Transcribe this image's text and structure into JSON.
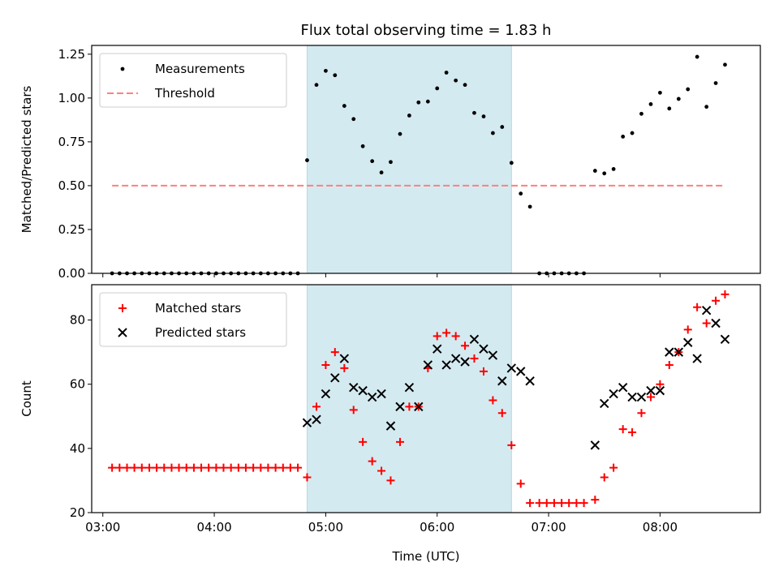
{
  "chart_data": {
    "type": "scatter",
    "title": "Flux total observing time = 1.83 h",
    "xlabel": "Time (UTC)",
    "x_tick_labels": [
      "03:00",
      "04:00",
      "05:00",
      "06:00",
      "07:00",
      "08:00"
    ],
    "x_ticks_hours": [
      3,
      4,
      5,
      6,
      7,
      8
    ],
    "xlim_hours": [
      2.9,
      8.9
    ],
    "shaded_interval_hours": [
      4.833,
      6.667
    ],
    "shade_color": "#d4eaf1",
    "panels": [
      {
        "ylabel": "Matched/Predicted stars",
        "ylim": [
          0,
          1.3
        ],
        "y_ticks": [
          0.0,
          0.25,
          0.5,
          0.75,
          1.0,
          1.25
        ],
        "y_tick_labels": [
          "0.00",
          "0.25",
          "0.50",
          "0.75",
          "1.00",
          "1.25"
        ],
        "legend": {
          "position": "upper-left",
          "entries": [
            "Measurements",
            "Threshold"
          ]
        },
        "series": [
          {
            "name": "Measurements",
            "marker": "dot",
            "color": "#000000",
            "points": [
              [
                3.083,
                0
              ],
              [
                3.15,
                0
              ],
              [
                3.217,
                0
              ],
              [
                3.283,
                0
              ],
              [
                3.35,
                0
              ],
              [
                3.417,
                0
              ],
              [
                3.483,
                0
              ],
              [
                3.55,
                0
              ],
              [
                3.617,
                0
              ],
              [
                3.683,
                0
              ],
              [
                3.75,
                0
              ],
              [
                3.817,
                0
              ],
              [
                3.883,
                0
              ],
              [
                3.95,
                0
              ],
              [
                4.017,
                0
              ],
              [
                4.083,
                0
              ],
              [
                4.15,
                0
              ],
              [
                4.217,
                0
              ],
              [
                4.283,
                0
              ],
              [
                4.35,
                0
              ],
              [
                4.417,
                0
              ],
              [
                4.483,
                0
              ],
              [
                4.55,
                0
              ],
              [
                4.617,
                0
              ],
              [
                4.683,
                0
              ],
              [
                4.75,
                0
              ],
              [
                4.833,
                0.645
              ],
              [
                4.917,
                1.075
              ],
              [
                5.0,
                1.155
              ],
              [
                5.083,
                1.13
              ],
              [
                5.167,
                0.955
              ],
              [
                5.25,
                0.88
              ],
              [
                5.333,
                0.725
              ],
              [
                5.417,
                0.64
              ],
              [
                5.5,
                0.575
              ],
              [
                5.583,
                0.635
              ],
              [
                5.667,
                0.795
              ],
              [
                5.75,
                0.9
              ],
              [
                5.833,
                0.975
              ],
              [
                5.917,
                0.98
              ],
              [
                6.0,
                1.055
              ],
              [
                6.083,
                1.145
              ],
              [
                6.167,
                1.1
              ],
              [
                6.25,
                1.075
              ],
              [
                6.333,
                0.915
              ],
              [
                6.417,
                0.895
              ],
              [
                6.5,
                0.8
              ],
              [
                6.583,
                0.835
              ],
              [
                6.667,
                0.63
              ],
              [
                6.75,
                0.455
              ],
              [
                6.833,
                0.38
              ],
              [
                6.917,
                0
              ],
              [
                6.983,
                0
              ],
              [
                7.05,
                0
              ],
              [
                7.117,
                0
              ],
              [
                7.183,
                0
              ],
              [
                7.25,
                0
              ],
              [
                7.317,
                0
              ],
              [
                7.417,
                0.585
              ],
              [
                7.5,
                0.57
              ],
              [
                7.583,
                0.595
              ],
              [
                7.667,
                0.78
              ],
              [
                7.75,
                0.8
              ],
              [
                7.833,
                0.91
              ],
              [
                7.917,
                0.965
              ],
              [
                8.0,
                1.03
              ],
              [
                8.083,
                0.94
              ],
              [
                8.167,
                0.995
              ],
              [
                8.25,
                1.05
              ],
              [
                8.333,
                1.235
              ],
              [
                8.417,
                0.95
              ],
              [
                8.5,
                1.085
              ],
              [
                8.583,
                1.19
              ]
            ]
          },
          {
            "name": "Threshold",
            "style": "dashed",
            "color": "#ff7f7f",
            "x_range_hours": [
              3.083,
              8.583
            ],
            "value": 0.5
          }
        ]
      },
      {
        "ylabel": "Count",
        "ylim": [
          20,
          91
        ],
        "y_ticks": [
          20,
          40,
          60,
          80
        ],
        "y_tick_labels": [
          "20",
          "40",
          "60",
          "80"
        ],
        "legend": {
          "position": "upper-left",
          "entries": [
            "Matched stars",
            "Predicted stars"
          ]
        },
        "series": [
          {
            "name": "Matched stars",
            "marker": "plus",
            "color": "#ff0000",
            "points": [
              [
                3.083,
                34
              ],
              [
                3.15,
                34
              ],
              [
                3.217,
                34
              ],
              [
                3.283,
                34
              ],
              [
                3.35,
                34
              ],
              [
                3.417,
                34
              ],
              [
                3.483,
                34
              ],
              [
                3.55,
                34
              ],
              [
                3.617,
                34
              ],
              [
                3.683,
                34
              ],
              [
                3.75,
                34
              ],
              [
                3.817,
                34
              ],
              [
                3.883,
                34
              ],
              [
                3.95,
                34
              ],
              [
                4.017,
                34
              ],
              [
                4.083,
                34
              ],
              [
                4.15,
                34
              ],
              [
                4.217,
                34
              ],
              [
                4.283,
                34
              ],
              [
                4.35,
                34
              ],
              [
                4.417,
                34
              ],
              [
                4.483,
                34
              ],
              [
                4.55,
                34
              ],
              [
                4.617,
                34
              ],
              [
                4.683,
                34
              ],
              [
                4.75,
                34
              ],
              [
                4.833,
                31
              ],
              [
                4.917,
                53
              ],
              [
                5.0,
                66
              ],
              [
                5.083,
                70
              ],
              [
                5.167,
                65
              ],
              [
                5.25,
                52
              ],
              [
                5.333,
                42
              ],
              [
                5.417,
                36
              ],
              [
                5.5,
                33
              ],
              [
                5.583,
                30
              ],
              [
                5.667,
                42
              ],
              [
                5.75,
                53
              ],
              [
                5.833,
                53
              ],
              [
                5.917,
                65
              ],
              [
                6.0,
                75
              ],
              [
                6.083,
                76
              ],
              [
                6.167,
                75
              ],
              [
                6.25,
                72
              ],
              [
                6.333,
                68
              ],
              [
                6.417,
                64
              ],
              [
                6.5,
                55
              ],
              [
                6.583,
                51
              ],
              [
                6.667,
                41
              ],
              [
                6.75,
                29
              ],
              [
                6.833,
                23
              ],
              [
                6.917,
                23
              ],
              [
                6.983,
                23
              ],
              [
                7.05,
                23
              ],
              [
                7.117,
                23
              ],
              [
                7.183,
                23
              ],
              [
                7.25,
                23
              ],
              [
                7.317,
                23
              ],
              [
                7.417,
                24
              ],
              [
                7.5,
                31
              ],
              [
                7.583,
                34
              ],
              [
                7.667,
                46
              ],
              [
                7.75,
                45
              ],
              [
                7.833,
                51
              ],
              [
                7.917,
                56
              ],
              [
                8.0,
                60
              ],
              [
                8.083,
                66
              ],
              [
                8.167,
                70
              ],
              [
                8.25,
                77
              ],
              [
                8.333,
                84
              ],
              [
                8.417,
                79
              ],
              [
                8.5,
                86
              ],
              [
                8.583,
                88
              ]
            ]
          },
          {
            "name": "Predicted stars",
            "marker": "x",
            "color": "#000000",
            "points": [
              [
                4.833,
                48
              ],
              [
                4.917,
                49
              ],
              [
                5.0,
                57
              ],
              [
                5.083,
                62
              ],
              [
                5.167,
                68
              ],
              [
                5.25,
                59
              ],
              [
                5.333,
                58
              ],
              [
                5.417,
                56
              ],
              [
                5.5,
                57
              ],
              [
                5.583,
                47
              ],
              [
                5.667,
                53
              ],
              [
                5.75,
                59
              ],
              [
                5.833,
                53
              ],
              [
                5.917,
                66
              ],
              [
                6.0,
                71
              ],
              [
                6.083,
                66
              ],
              [
                6.167,
                68
              ],
              [
                6.25,
                67
              ],
              [
                6.333,
                74
              ],
              [
                6.417,
                71
              ],
              [
                6.5,
                69
              ],
              [
                6.583,
                61
              ],
              [
                6.667,
                65
              ],
              [
                6.75,
                64
              ],
              [
                6.833,
                61
              ],
              [
                7.417,
                41
              ],
              [
                7.5,
                54
              ],
              [
                7.583,
                57
              ],
              [
                7.667,
                59
              ],
              [
                7.75,
                56
              ],
              [
                7.833,
                56
              ],
              [
                7.917,
                58
              ],
              [
                8.0,
                58
              ],
              [
                8.083,
                70
              ],
              [
                8.167,
                70
              ],
              [
                8.25,
                73
              ],
              [
                8.333,
                68
              ],
              [
                8.417,
                83
              ],
              [
                8.5,
                79
              ],
              [
                8.583,
                74
              ]
            ]
          }
        ]
      }
    ]
  }
}
